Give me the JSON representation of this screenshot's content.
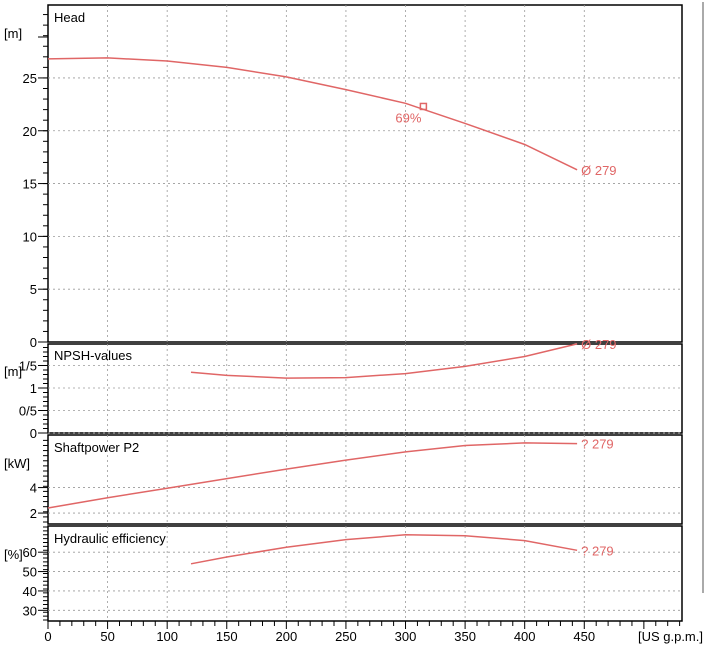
{
  "chart_data": [
    {
      "type": "line",
      "title": "Head",
      "ylabel": "[m]",
      "ylim": [
        0,
        32
      ],
      "yticks": [
        0,
        5,
        10,
        15,
        20,
        25
      ],
      "series": [
        {
          "points": [
            [
              0,
              26.8
            ],
            [
              50,
              26.9
            ],
            [
              100,
              26.6
            ],
            [
              150,
              26.0
            ],
            [
              200,
              25.1
            ],
            [
              250,
              23.9
            ],
            [
              300,
              22.6
            ],
            [
              350,
              20.7
            ],
            [
              400,
              18.7
            ],
            [
              444,
              16.3
            ]
          ]
        }
      ],
      "end_label": "Ø 279",
      "annotation": {
        "x": 315,
        "y": 22.3,
        "label": "69%"
      },
      "color": "#e06666"
    },
    {
      "type": "line",
      "title": "NPSH-values",
      "ylabel": "[m]",
      "ylim": [
        0,
        2
      ],
      "ytick_labels": [
        {
          "value": 0,
          "label": "0"
        },
        {
          "value": 0.5,
          "label": "0/5"
        },
        {
          "value": 1,
          "label": "1"
        },
        {
          "value": 1.5,
          "label": "1/5"
        }
      ],
      "series": [
        {
          "points": [
            [
              120,
              1.35
            ],
            [
              150,
              1.28
            ],
            [
              200,
              1.22
            ],
            [
              250,
              1.23
            ],
            [
              300,
              1.32
            ],
            [
              350,
              1.48
            ],
            [
              400,
              1.7
            ],
            [
              444,
              1.98
            ]
          ]
        }
      ],
      "end_label": "Ø 279",
      "color": "#e06666"
    },
    {
      "type": "line",
      "title": "Shaftpower P2",
      "ylabel": "[kW]",
      "ylim": [
        1.3,
        8.2
      ],
      "yticks": [
        2,
        4
      ],
      "series": [
        {
          "points": [
            [
              0,
              2.4
            ],
            [
              50,
              3.2
            ],
            [
              100,
              3.95
            ],
            [
              150,
              4.7
            ],
            [
              200,
              5.45
            ],
            [
              250,
              6.15
            ],
            [
              300,
              6.8
            ],
            [
              350,
              7.3
            ],
            [
              400,
              7.5
            ],
            [
              444,
              7.45
            ]
          ]
        }
      ],
      "end_label": "? 279",
      "color": "#e06666"
    },
    {
      "type": "line",
      "title": "Hydraulic efficiency",
      "ylabel": "[%]",
      "ylim": [
        25,
        73
      ],
      "yticks": [
        30,
        40,
        50,
        60
      ],
      "series": [
        {
          "points": [
            [
              120,
              54
            ],
            [
              150,
              57.5
            ],
            [
              200,
              62.5
            ],
            [
              250,
              66.5
            ],
            [
              300,
              69
            ],
            [
              350,
              68.5
            ],
            [
              400,
              66
            ],
            [
              444,
              61
            ]
          ]
        }
      ],
      "end_label": "? 279",
      "color": "#e06666"
    }
  ],
  "x_axis": {
    "xlim": [
      0,
      532
    ],
    "ticks": [
      0,
      50,
      100,
      150,
      200,
      250,
      300,
      350,
      400,
      450
    ],
    "unit_label": "[US g.p.m.]"
  }
}
